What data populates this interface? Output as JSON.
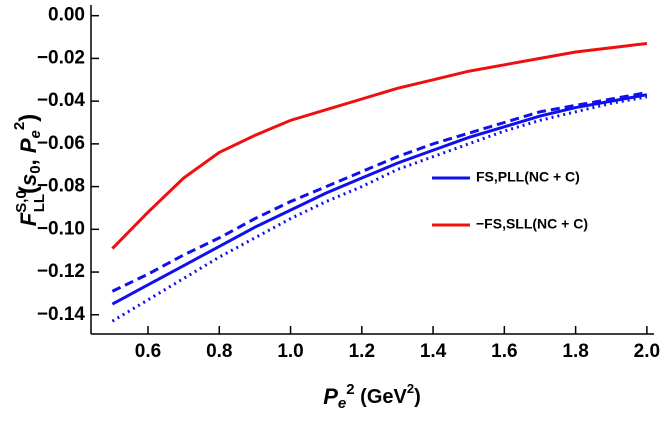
{
  "chart_data": {
    "type": "line",
    "x_label": [
      "P",
      "e",
      "2",
      " (GeV",
      "2",
      ")"
    ],
    "y_label": [
      "F",
      "S,0",
      "LL",
      "(",
      "s",
      "0",
      ", ",
      "P",
      "e",
      "2",
      ")"
    ],
    "x": [
      0.5,
      0.6,
      0.7,
      0.8,
      0.9,
      1.0,
      1.1,
      1.2,
      1.3,
      1.4,
      1.5,
      1.6,
      1.7,
      1.8,
      1.9,
      2.0
    ],
    "series": [
      {
        "name": "FS,PLL(NC + C)",
        "color": "#1010ee",
        "style": "solid",
        "values": [
          -0.135,
          -0.126,
          -0.117,
          -0.108,
          -0.099,
          -0.091,
          -0.083,
          -0.076,
          -0.069,
          -0.063,
          -0.057,
          -0.052,
          -0.047,
          -0.043,
          -0.04,
          -0.037
        ]
      },
      {
        "name": "−FS,SLL(NC + C)",
        "color": "#ee1010",
        "style": "solid",
        "values": [
          -0.109,
          -0.092,
          -0.076,
          -0.064,
          -0.056,
          -0.049,
          -0.044,
          -0.039,
          -0.034,
          -0.03,
          -0.026,
          -0.023,
          -0.02,
          -0.017,
          -0.015,
          -0.013
        ]
      },
      {
        "color": "#1010ee",
        "style": "dashed",
        "values": [
          -0.129,
          -0.121,
          -0.112,
          -0.104,
          -0.095,
          -0.087,
          -0.08,
          -0.073,
          -0.066,
          -0.06,
          -0.055,
          -0.05,
          -0.045,
          -0.042,
          -0.039,
          -0.036
        ]
      },
      {
        "color": "#1010ee",
        "style": "dotted",
        "values": [
          -0.143,
          -0.133,
          -0.123,
          -0.113,
          -0.104,
          -0.095,
          -0.087,
          -0.08,
          -0.072,
          -0.066,
          -0.06,
          -0.054,
          -0.049,
          -0.045,
          -0.041,
          -0.038
        ]
      }
    ],
    "xlim": [
      0.44,
      2.02
    ],
    "ylim": [
      -0.149,
      0.005
    ],
    "xticks": [
      0.6,
      0.8,
      {
        "value": 1.0,
        "label": "1.0"
      },
      1.2,
      1.4,
      1.6,
      1.8,
      {
        "value": 2.0,
        "label": "2.0"
      }
    ],
    "yticks": [
      {
        "value": 0,
        "label": "0.00"
      },
      {
        "value": -0.02,
        "label": "−0.02"
      },
      {
        "value": -0.04,
        "label": "−0.04"
      },
      {
        "value": -0.06,
        "label": "−0.06"
      },
      {
        "value": -0.08,
        "label": "−0.08"
      },
      {
        "value": -0.1,
        "label": "−0.10"
      },
      {
        "value": -0.12,
        "label": "−0.12"
      },
      {
        "value": -0.14,
        "label": "−0.14"
      }
    ],
    "legend": "right"
  }
}
